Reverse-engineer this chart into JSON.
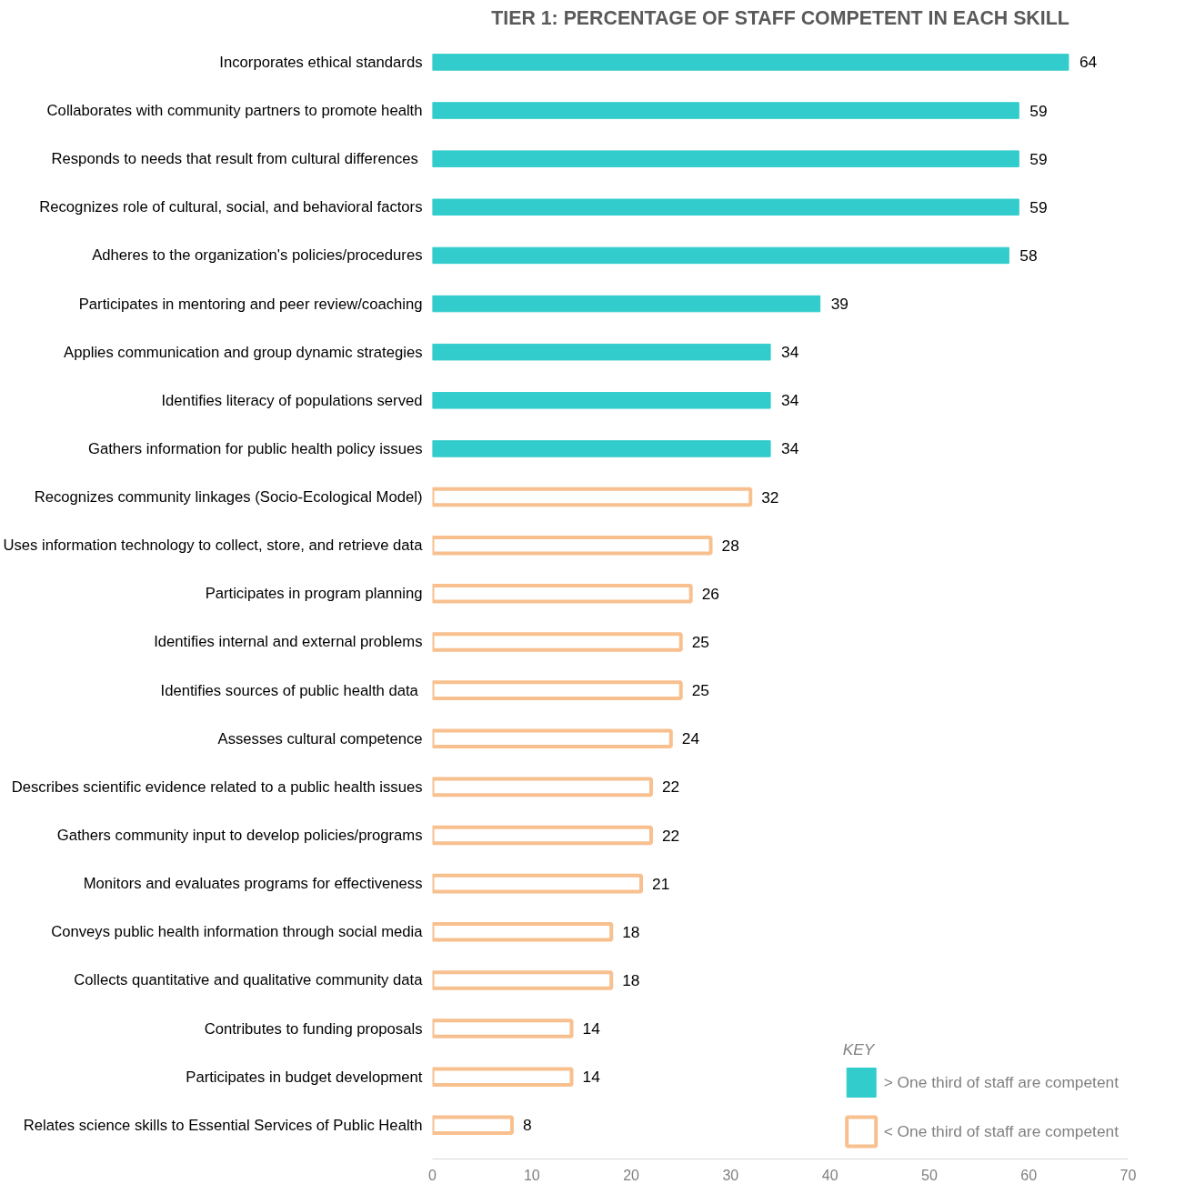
{
  "chart_data": {
    "type": "bar",
    "orientation": "horizontal",
    "title": "TIER 1: PERCENTAGE OF STAFF COMPETENT IN EACH SKILL",
    "categories": [
      "Incorporates ethical standards",
      "Collaborates with community partners to promote health",
      "Responds to needs that  result from cultural differences",
      "Recognizes role of cultural, social, and behavioral factors",
      "Adheres to the organization's policies/procedures",
      "Participates in mentoring and peer review/coaching",
      "Applies communication and group dynamic strategies",
      "Identifies literacy of populations served",
      "Gathers information for public health policy issues",
      "Recognizes community linkages (Socio-Ecological Model)",
      "Uses information technology to collect, store, and retrieve data",
      "Participates in program planning",
      "Identifies internal and external problems",
      "Identifies sources of  public health data",
      "Assesses cultural competence",
      "Describes scientific evidence related to a public health issues",
      "Gathers community input to develop policies/programs",
      "Monitors and evaluates programs for effectiveness",
      "Conveys public health information through social media",
      "Collects quantitative and qualitative community data",
      "Contributes to funding proposals",
      "Participates in budget development",
      "Relates science skills to Essential Services of Public Health"
    ],
    "series": [
      {
        "name": "> One third of staff are competent",
        "color": "#33cccc",
        "values": [
          64,
          59,
          59,
          59,
          58,
          39,
          34,
          34,
          34,
          null,
          null,
          null,
          null,
          null,
          null,
          null,
          null,
          null,
          null,
          null,
          null,
          null,
          null
        ]
      },
      {
        "name": "< One third of staff are competent",
        "color": "#f8c08f",
        "values": [
          null,
          null,
          null,
          null,
          null,
          null,
          null,
          null,
          null,
          32,
          28,
          26,
          25,
          25,
          24,
          22,
          22,
          21,
          18,
          18,
          14,
          14,
          8
        ]
      }
    ],
    "legend_title": "KEY",
    "legend": "bottom right",
    "data_labels": true,
    "grid": false,
    "xlim": [
      0,
      70
    ],
    "xticks": [
      0,
      10,
      20,
      30,
      40,
      50,
      60,
      70
    ]
  }
}
